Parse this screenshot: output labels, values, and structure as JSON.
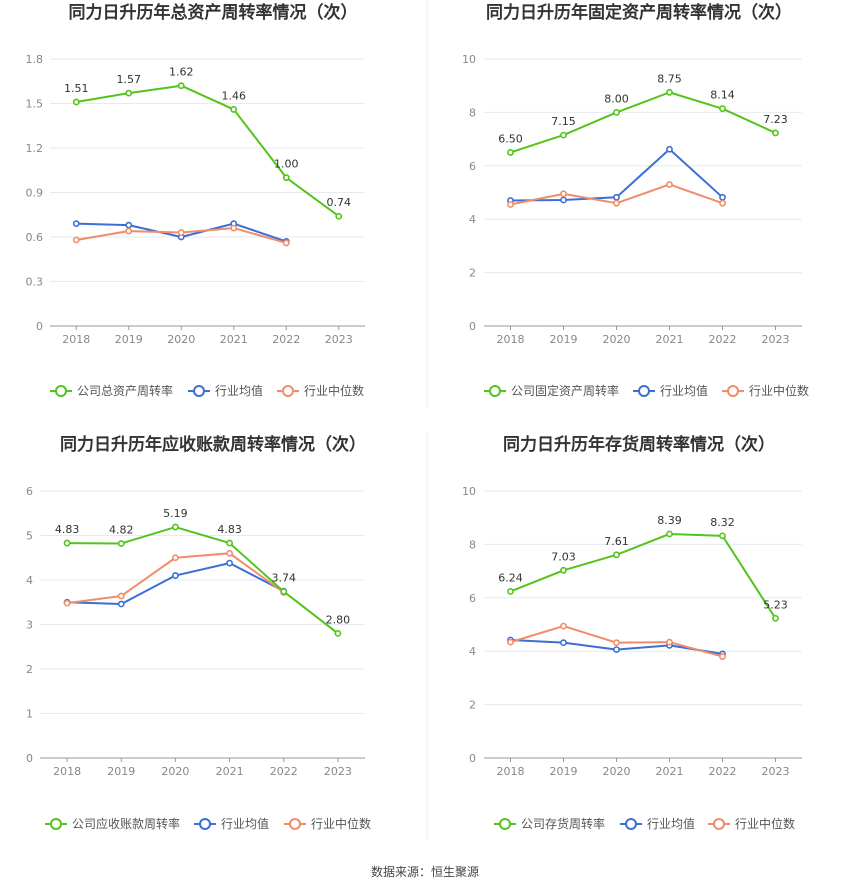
{
  "colors": {
    "company": "#52c41a",
    "avg": "#3b6fd6",
    "median": "#f08c69"
  },
  "source": "数据来源：恒生聚源",
  "chart_data": [
    {
      "type": "line",
      "title": "同力日升历年总资产周转率情况（次）",
      "categories": [
        "2018",
        "2019",
        "2020",
        "2021",
        "2022",
        "2023"
      ],
      "ylim": [
        0,
        1.8
      ],
      "yticks": [
        "0",
        "0.3",
        "0.6",
        "0.9",
        "1.2",
        "1.5",
        "1.8"
      ],
      "grid": true,
      "legend": "bottom",
      "series": [
        {
          "name": "公司总资产周转率",
          "values": [
            1.51,
            1.57,
            1.62,
            1.46,
            1.0,
            0.74
          ],
          "labels": [
            "1.51",
            "1.57",
            "1.62",
            "1.46",
            "1.00",
            "0.74"
          ]
        },
        {
          "name": "行业均值",
          "values": [
            0.69,
            0.68,
            0.6,
            0.69,
            0.57,
            null
          ]
        },
        {
          "name": "行业中位数",
          "values": [
            0.58,
            0.64,
            0.63,
            0.66,
            0.56,
            null
          ]
        }
      ]
    },
    {
      "type": "line",
      "title": "同力日升历年固定资产周转率情况（次）",
      "categories": [
        "2018",
        "2019",
        "2020",
        "2021",
        "2022",
        "2023"
      ],
      "ylim": [
        0,
        10
      ],
      "yticks": [
        "0",
        "2",
        "4",
        "6",
        "8",
        "10"
      ],
      "grid": true,
      "legend": "bottom",
      "series": [
        {
          "name": "公司固定资产周转率",
          "values": [
            6.5,
            7.15,
            8.0,
            8.75,
            8.14,
            7.23
          ],
          "labels": [
            "6.50",
            "7.15",
            "8.00",
            "8.75",
            "8.14",
            "7.23"
          ]
        },
        {
          "name": "行业均值",
          "values": [
            4.7,
            4.72,
            4.82,
            6.62,
            4.82,
            null
          ]
        },
        {
          "name": "行业中位数",
          "values": [
            4.55,
            4.95,
            4.6,
            5.3,
            4.6,
            null
          ]
        }
      ]
    },
    {
      "type": "line",
      "title": "同力日升历年应收账款周转率情况（次）",
      "categories": [
        "2018",
        "2019",
        "2020",
        "2021",
        "2022",
        "2023"
      ],
      "ylim": [
        0,
        6
      ],
      "yticks": [
        "0",
        "1",
        "2",
        "3",
        "4",
        "5",
        "6"
      ],
      "grid": true,
      "legend": "bottom",
      "series": [
        {
          "name": "公司应收账款周转率",
          "values": [
            4.83,
            4.82,
            5.19,
            4.83,
            3.74,
            2.8
          ],
          "labels": [
            "4.83",
            "4.82",
            "5.19",
            "4.83",
            "3.74",
            "2.80"
          ]
        },
        {
          "name": "行业均值",
          "values": [
            3.5,
            3.46,
            4.1,
            4.38,
            3.75,
            null
          ]
        },
        {
          "name": "行业中位数",
          "values": [
            3.48,
            3.64,
            4.5,
            4.6,
            3.72,
            null
          ]
        }
      ]
    },
    {
      "type": "line",
      "title": "同力日升历年存货周转率情况（次）",
      "categories": [
        "2018",
        "2019",
        "2020",
        "2021",
        "2022",
        "2023"
      ],
      "ylim": [
        0,
        10
      ],
      "yticks": [
        "0",
        "2",
        "4",
        "6",
        "8",
        "10"
      ],
      "grid": true,
      "legend": "bottom",
      "series": [
        {
          "name": "公司存货周转率",
          "values": [
            6.24,
            7.03,
            7.61,
            8.39,
            8.32,
            5.23
          ],
          "labels": [
            "6.24",
            "7.03",
            "7.61",
            "8.39",
            "8.32",
            "5.23"
          ]
        },
        {
          "name": "行业均值",
          "values": [
            4.42,
            4.32,
            4.06,
            4.22,
            3.9,
            null
          ]
        },
        {
          "name": "行业中位数",
          "values": [
            4.34,
            4.94,
            4.32,
            4.34,
            3.8,
            null
          ]
        }
      ]
    }
  ]
}
